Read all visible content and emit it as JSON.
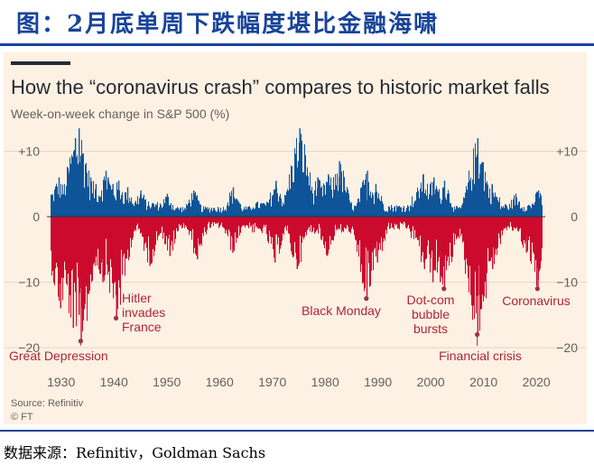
{
  "header": {
    "title": "图：2月底单周下跌幅度堪比金融海啸"
  },
  "chart_data": {
    "type": "bar",
    "title": "How the “coronavirus crash” compares to historic market falls",
    "subtitle": "Week-on-week change in S&P 500 (%)",
    "xlabel": "",
    "ylabel": "Week-on-week change in S&P 500 (%)",
    "xlim": [
      1928,
      2021
    ],
    "ylim": [
      -21,
      15
    ],
    "y_ticks": [
      {
        "value": 10,
        "label": "+10"
      },
      {
        "value": 0,
        "label": "0"
      },
      {
        "value": -10,
        "label": "−10"
      },
      {
        "value": -20,
        "label": "−20"
      }
    ],
    "x_ticks": [
      1930,
      1940,
      1950,
      1960,
      1970,
      1980,
      1990,
      2000,
      2010,
      2020
    ],
    "colors": {
      "positive": "#0f5499",
      "negative": "#cc0a2e",
      "annotation": "#b0243b",
      "leader": "#9e2f50"
    },
    "series": [
      {
        "name": "Gains",
        "color": "#0f5499",
        "x": [
          1929.5,
          1931.5,
          1932.6,
          1933.3,
          1933.8,
          1934.5,
          1935.5,
          1936.5,
          1938.4,
          1938.8,
          1939.7,
          1940.8,
          1942.5,
          1945.0,
          1950.0,
          1955.0,
          1962.5,
          1970.6,
          1974.8,
          1975.1,
          1978.5,
          1980.5,
          1982.6,
          1987.9,
          1989.5,
          1998.5,
          2000.5,
          2002.5,
          2008.8,
          2009.3,
          2011.5,
          2016.0,
          2020.3
        ],
        "values": [
          6,
          7,
          12,
          13.5,
          9,
          8,
          6,
          5,
          7,
          6,
          5,
          5.5,
          4.5,
          4,
          3.5,
          4,
          4.5,
          5.5,
          8.5,
          13.5,
          6,
          6.5,
          8.5,
          7,
          5,
          6.5,
          6,
          5.5,
          12,
          8,
          5,
          3.5,
          4
        ]
      },
      {
        "name": "Falls",
        "color": "#cc0a2e",
        "x": [
          1929.8,
          1931.5,
          1932.2,
          1933.3,
          1933.7,
          1935.5,
          1937.8,
          1938.2,
          1940.4,
          1941.5,
          1946.7,
          1950.5,
          1955.7,
          1962.4,
          1970.4,
          1974.6,
          1980.3,
          1987.8,
          1989.8,
          1998.7,
          2000.3,
          2001.7,
          2002.5,
          2008.8,
          2009.1,
          2010.5,
          2011.6,
          2018.0,
          2020.2
        ],
        "values": [
          -14,
          -12,
          -17,
          -15,
          -19,
          -7,
          -10,
          -8,
          -15.5,
          -6,
          -7.5,
          -6,
          -6.5,
          -5.5,
          -7,
          -8,
          -6,
          -12.5,
          -7,
          -8,
          -10,
          -10,
          -11,
          -18,
          -12,
          -6,
          -8,
          -5.5,
          -11
        ]
      }
    ],
    "annotations": [
      {
        "lines": [
          "Great Depression"
        ],
        "x": 1933.7,
        "y": -19
      },
      {
        "lines": [
          "Hitler",
          "invades",
          "France"
        ],
        "x": 1940.4,
        "y": -15.5
      },
      {
        "lines": [
          "Black Monday"
        ],
        "x": 1987.8,
        "y": -12.5
      },
      {
        "lines": [
          "Dot-com",
          "bubble",
          "bursts"
        ],
        "x": 2002.5,
        "y": -11
      },
      {
        "lines": [
          "Financial crisis"
        ],
        "x": 2008.8,
        "y": -18
      },
      {
        "lines": [
          "Coronavirus"
        ],
        "x": 2020.2,
        "y": -11
      }
    ],
    "source": "Source: Refinitiv",
    "credit": "© FT"
  },
  "footer": {
    "data_source": "数据来源：Refinitiv，Goldman Sachs"
  }
}
